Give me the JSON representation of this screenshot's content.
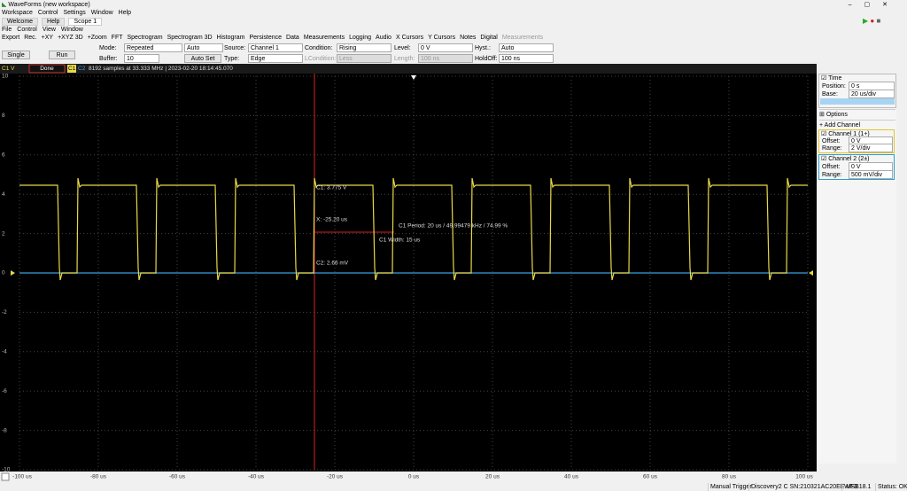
{
  "title_bar": {
    "title": "WaveForms (new workspace)"
  },
  "menu": [
    "Workspace",
    "Control",
    "Settings",
    "Window",
    "Help"
  ],
  "tabs": [
    "Welcome",
    "Help",
    "Scope 1"
  ],
  "scope_menu": [
    "File",
    "Control",
    "View",
    "Window"
  ],
  "toolbar": [
    "Export",
    "Rec.",
    "+XY",
    "+XYZ 3D",
    "+Zoom",
    "FFT",
    "Spectrogram",
    "Spectrogram 3D",
    "Histogram",
    "Persistence",
    "Data",
    "Measurements",
    "Logging",
    "Audio",
    "X Cursors",
    "Y Cursors",
    "Notes",
    "Digital",
    "Measurements"
  ],
  "controls": {
    "single": "Single",
    "run": "Run",
    "mode_label": "Mode:",
    "mode": "Repeated",
    "mode2": "Auto",
    "buffer_label": "Buffer:",
    "buffer": "10",
    "auto_set": "Auto Set",
    "source_label": "Source:",
    "source": "Channel 1",
    "type_label": "Type:",
    "type": "Edge",
    "condition_label": "Condition:",
    "condition": "Rising",
    "lcondition_label": "LCondition:",
    "lcondition": "Less",
    "level_label": "Level:",
    "level": "0 V",
    "length_label": "Length:",
    "length": "100 ns",
    "hyst_label": "Hyst.:",
    "hyst": "Auto",
    "holdoff_label": "HoldOff:",
    "holdoff": "100 ns"
  },
  "plot": {
    "channel_label": "C1 V",
    "status": "Done",
    "c1": "C1",
    "c2": "C2",
    "info": "8192 samples at 33.333 MHz | 2023-02-20 18:14:45.070",
    "y_labels": [
      "10",
      "8",
      "6",
      "4",
      "2",
      "0",
      "-2",
      "-4",
      "-6",
      "-8",
      "-10"
    ],
    "x_labels": [
      "-100 us",
      "-80 us",
      "-60 us",
      "-40 us",
      "-20 us",
      "0 us",
      "20 us",
      "40 us",
      "60 us",
      "80 us",
      "100 us"
    ],
    "cursor": {
      "c1": "C1: 3.775 V",
      "x": "X: -25.20 us",
      "c2": "C2: 2.66 mV",
      "period": "C1 Period: 20 us / 49.99479 kHz / 74.99 %",
      "width": "C1 Width: 15 us"
    }
  },
  "panel": {
    "time": "Time",
    "position_label": "Position:",
    "position": "0 s",
    "base_label": "Base:",
    "base": "20 us/div",
    "options": "Options",
    "add_channel": "Add Channel",
    "ch1": {
      "name": "Channel 1 (1+)",
      "offset_label": "Offset:",
      "offset": "0 V",
      "range_label": "Range:",
      "range": "2 V/div"
    },
    "ch2": {
      "name": "Channel 2 (2±)",
      "offset_label": "Offset:",
      "offset": "0 V",
      "range_label": "Range:",
      "range": "500 mV/div"
    }
  },
  "status_bar": [
    "Manual Trigger",
    "Discovery2 C SN:210321AC20EE USB",
    "WF3.18.1",
    "Status: OK"
  ]
}
